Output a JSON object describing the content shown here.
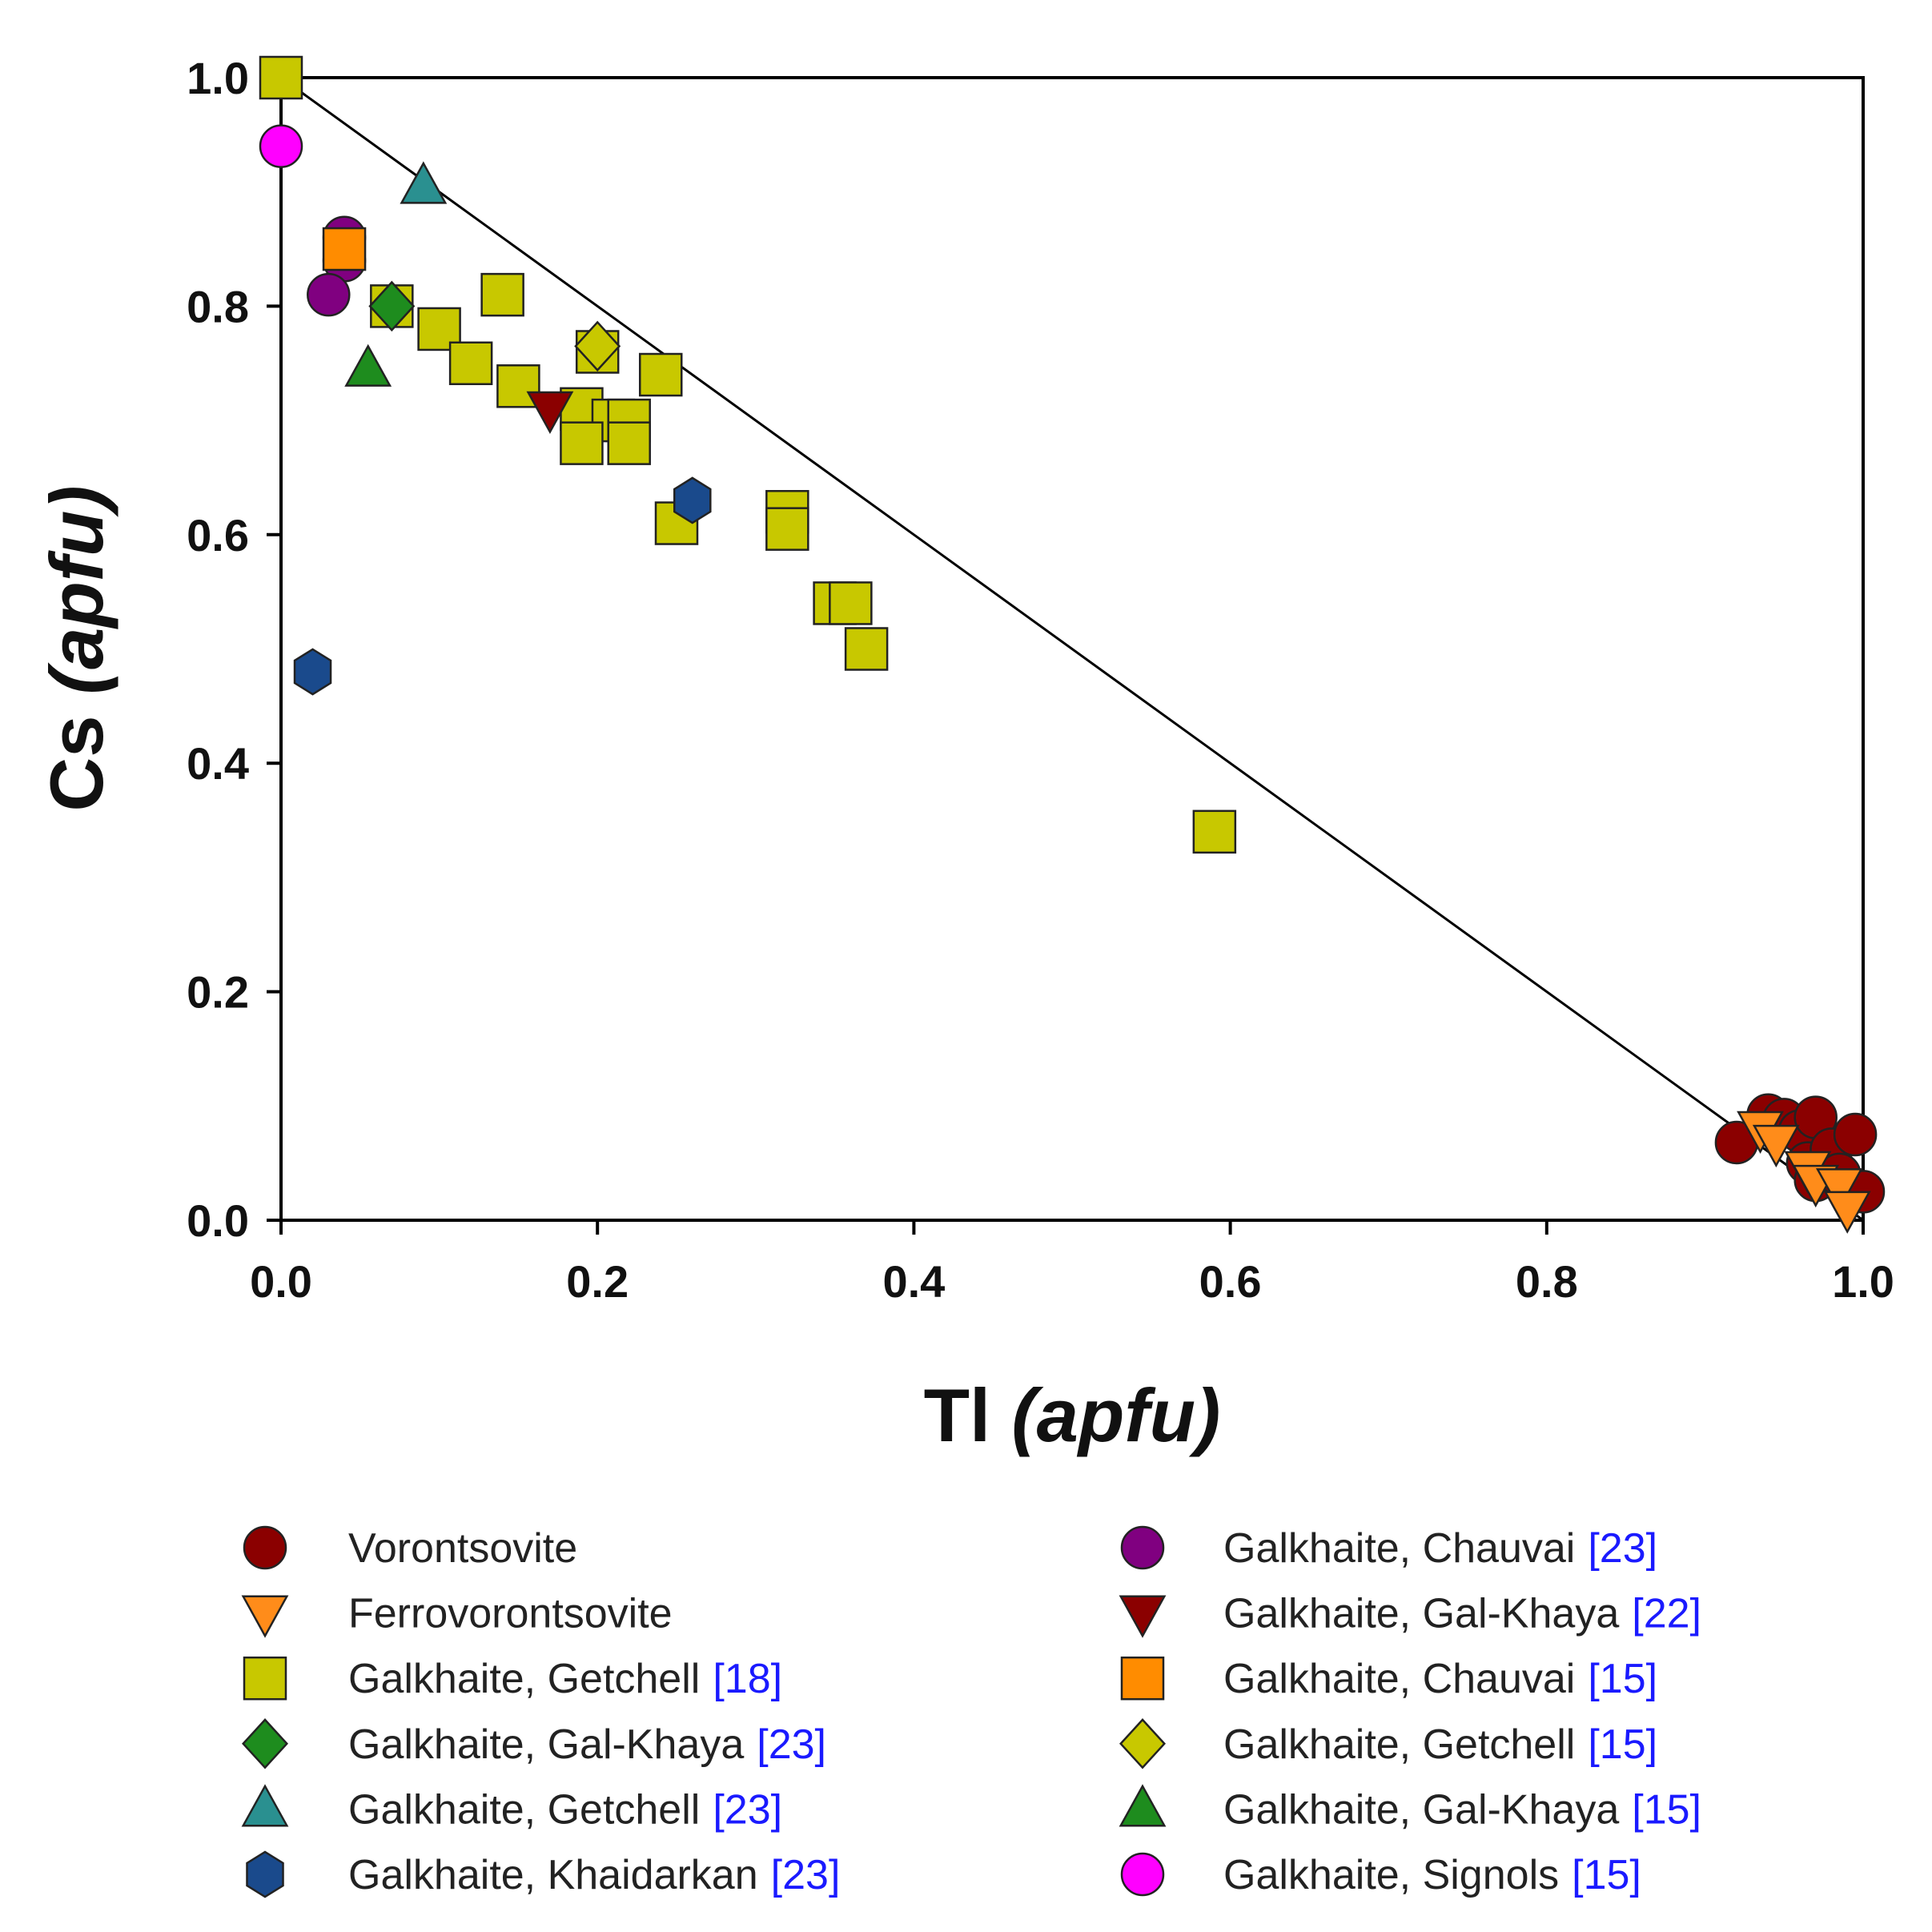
{
  "chart_data": {
    "type": "scatter",
    "xlabel_main": "Tl",
    "xlabel_unit": "(apfu)",
    "ylabel_main": "Cs",
    "ylabel_unit": "(apfu)",
    "xlim": [
      0,
      1
    ],
    "ylim": [
      0,
      1
    ],
    "xticks": [
      "0.0",
      "0.2",
      "0.4",
      "0.6",
      "0.8",
      "1.0"
    ],
    "yticks": [
      "0.0",
      "0.2",
      "0.4",
      "0.6",
      "0.8",
      "1.0"
    ],
    "grid": false,
    "legend_placement": "bottom",
    "reference_line": {
      "from": [
        0,
        1
      ],
      "to": [
        1,
        0
      ],
      "color": "#000000"
    },
    "series": [
      {
        "name": "Vorontsovite",
        "ref": "",
        "marker": "circle",
        "color": "#8b0000",
        "points": [
          [
            0.92,
            0.068
          ],
          [
            0.94,
            0.092
          ],
          [
            0.95,
            0.088
          ],
          [
            0.96,
            0.078
          ],
          [
            0.97,
            0.09
          ],
          [
            0.965,
            0.05
          ],
          [
            0.97,
            0.035
          ],
          [
            0.98,
            0.062
          ],
          [
            0.985,
            0.04
          ],
          [
            0.995,
            0.075
          ],
          [
            1.0,
            0.025
          ]
        ]
      },
      {
        "name": "Ferrovorontsovite",
        "ref": "",
        "marker": "triangle-down",
        "color": "#ff8c1a",
        "points": [
          [
            0.935,
            0.08
          ],
          [
            0.945,
            0.068
          ],
          [
            0.965,
            0.045
          ],
          [
            0.97,
            0.033
          ],
          [
            0.985,
            0.03
          ],
          [
            0.99,
            0.01
          ]
        ]
      },
      {
        "name": "Galkhaite, Getchell",
        "ref": "[18]",
        "marker": "square",
        "color": "#c8c800",
        "points": [
          [
            0.0,
            1.0
          ],
          [
            0.07,
            0.8
          ],
          [
            0.14,
            0.81
          ],
          [
            0.1,
            0.78
          ],
          [
            0.12,
            0.75
          ],
          [
            0.15,
            0.73
          ],
          [
            0.2,
            0.76
          ],
          [
            0.24,
            0.74
          ],
          [
            0.19,
            0.71
          ],
          [
            0.21,
            0.7
          ],
          [
            0.19,
            0.68
          ],
          [
            0.22,
            0.7
          ],
          [
            0.22,
            0.68
          ],
          [
            0.25,
            0.61
          ],
          [
            0.32,
            0.62
          ],
          [
            0.32,
            0.605
          ],
          [
            0.35,
            0.54
          ],
          [
            0.36,
            0.54
          ],
          [
            0.37,
            0.5
          ],
          [
            0.59,
            0.34
          ]
        ]
      },
      {
        "name": "Galkhaite, Gal-Khaya",
        "ref": "[23]",
        "marker": "diamond",
        "color": "#1e8c1e",
        "points": [
          [
            0.07,
            0.8
          ]
        ]
      },
      {
        "name": "Galkhaite, Getchell",
        "ref": "[23]",
        "marker": "triangle-up",
        "color": "#2a9090",
        "points": [
          [
            0.09,
            0.905
          ]
        ]
      },
      {
        "name": "Galkhaite, Khaidarkan",
        "ref": "[23]",
        "marker": "hexagon",
        "color": "#1a4a8c",
        "points": [
          [
            0.02,
            0.48
          ],
          [
            0.26,
            0.63
          ]
        ]
      },
      {
        "name": "Galkhaite, Chauvai",
        "ref": "[23]",
        "marker": "circle",
        "color": "#800080",
        "points": [
          [
            0.04,
            0.86
          ],
          [
            0.04,
            0.84
          ],
          [
            0.03,
            0.81
          ]
        ]
      },
      {
        "name": "Galkhaite, Gal-Khaya",
        "ref": "[22]",
        "marker": "triangle-down",
        "color": "#8b0000",
        "points": [
          [
            0.17,
            0.71
          ]
        ]
      },
      {
        "name": "Galkhaite, Chauvai",
        "ref": "[15]",
        "marker": "square",
        "color": "#ff8c00",
        "points": [
          [
            0.04,
            0.85
          ]
        ]
      },
      {
        "name": "Galkhaite, Getchell",
        "ref": "[15]",
        "marker": "diamond",
        "color": "#c8c800",
        "points": [
          [
            0.2,
            0.765
          ]
        ]
      },
      {
        "name": "Galkhaite, Gal-Khaya",
        "ref": "[15]",
        "marker": "triangle-up",
        "color": "#1e8c1e",
        "points": [
          [
            0.055,
            0.745
          ]
        ]
      },
      {
        "name": "Galkhaite, Signols",
        "ref": "[15]",
        "marker": "circle",
        "color": "#ff00ff",
        "points": [
          [
            0.0,
            0.94
          ]
        ]
      }
    ]
  }
}
